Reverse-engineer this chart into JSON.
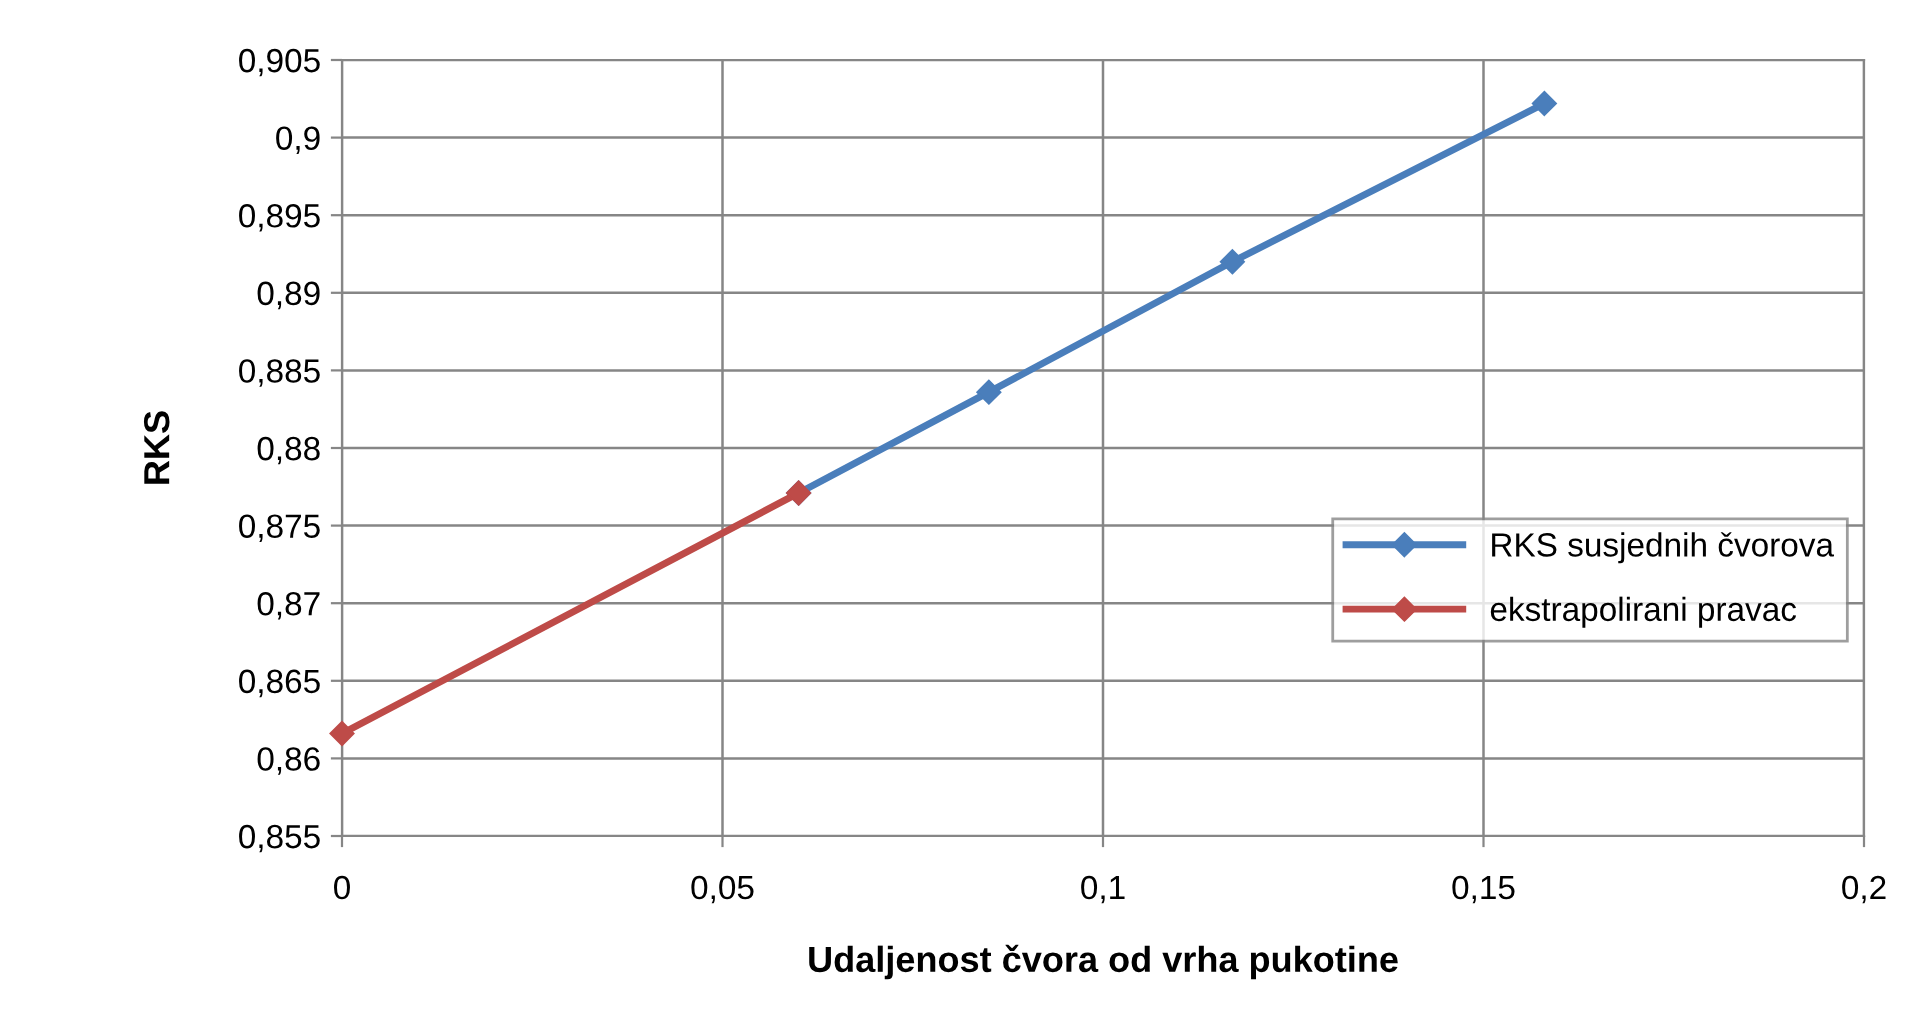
{
  "chart_data": {
    "type": "line",
    "xlabel": "Udaljenost čvora od vrha pukotine",
    "ylabel": "RKS",
    "series": [
      {
        "name": "RKS susjednih čvorova",
        "color": "#4a7ebb",
        "x": [
          0.06,
          0.085,
          0.117,
          0.158
        ],
        "values": [
          0.8771,
          0.8836,
          0.892,
          0.9022
        ]
      },
      {
        "name": "ekstrapolirani pravac",
        "color": "#be4b48",
        "x": [
          0,
          0.06
        ],
        "values": [
          0.8616,
          0.8771
        ]
      }
    ],
    "xlim": [
      0,
      0.2
    ],
    "xticks": [
      {
        "value": 0,
        "label": "0"
      },
      {
        "value": 0.05,
        "label": "0,05"
      },
      {
        "value": 0.1,
        "label": "0,1"
      },
      {
        "value": 0.15,
        "label": "0,15"
      },
      {
        "value": 0.2,
        "label": "0,2"
      }
    ],
    "ylim": [
      0.855,
      0.905
    ],
    "yticks": [
      {
        "value": 0.855,
        "label": "0,855"
      },
      {
        "value": 0.86,
        "label": "0,86"
      },
      {
        "value": 0.865,
        "label": "0,865"
      },
      {
        "value": 0.87,
        "label": "0,87"
      },
      {
        "value": 0.875,
        "label": "0,875"
      },
      {
        "value": 0.88,
        "label": "0,88"
      },
      {
        "value": 0.885,
        "label": "0,885"
      },
      {
        "value": 0.89,
        "label": "0,89"
      },
      {
        "value": 0.895,
        "label": "0,895"
      },
      {
        "value": 0.9,
        "label": "0,9"
      },
      {
        "value": 0.905,
        "label": "0,905"
      }
    ],
    "grid": true,
    "legend": "right",
    "marker": "diamond",
    "line_style": "solid"
  }
}
